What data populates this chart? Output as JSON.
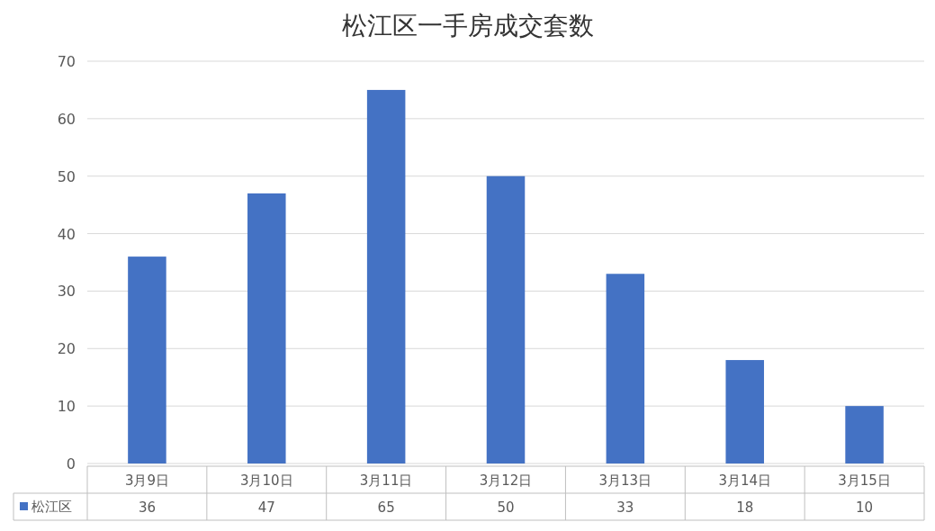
{
  "chart_data": {
    "type": "bar",
    "title": "松江区一手房成交套数",
    "categories": [
      "3月9日",
      "3月10日",
      "3月11日",
      "3月12日",
      "3月13日",
      "3月14日",
      "3月15日"
    ],
    "series": [
      {
        "name": "松江区",
        "color": "#4472c4",
        "values": [
          36,
          47,
          65,
          50,
          33,
          18,
          10
        ]
      }
    ],
    "ylim": [
      0,
      70
    ],
    "yticks": [
      0,
      10,
      20,
      30,
      40,
      50,
      60,
      70
    ],
    "grid": "y",
    "legend": "bottom",
    "data_labels": true
  }
}
